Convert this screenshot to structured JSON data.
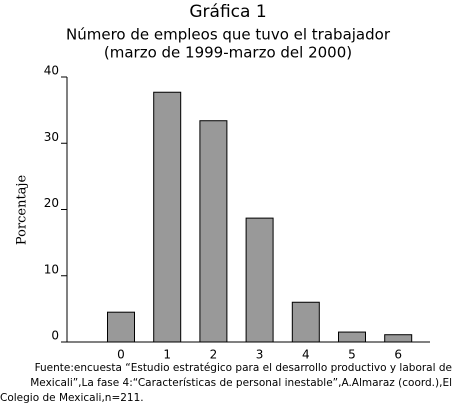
{
  "chart_data": {
    "type": "bar",
    "title": "Gráfica 1",
    "subtitle": [
      "Número de empleos que tuvo el trabajador",
      "(marzo de 1999-marzo del 2000)"
    ],
    "y_label": "Porcentaje",
    "categories": [
      "0",
      "1",
      "2",
      "3",
      "4",
      "5",
      "6"
    ],
    "values": [
      4.5,
      37.7,
      33.4,
      18.7,
      6.0,
      1.5,
      1.1
    ],
    "color": "#999999",
    "ylim": [
      0,
      40
    ],
    "yticks": [
      0,
      10,
      20,
      30,
      40
    ],
    "grid": false,
    "note": [
      "Fuente:encuesta “Estudio estratégico para el desarrollo productivo y laboral de",
      "Mexicali”,La fase 4:“Características de personal inestable”,A.Almaraz  (coord.),El",
      "Colegio de Mexicali,n=211."
    ]
  }
}
